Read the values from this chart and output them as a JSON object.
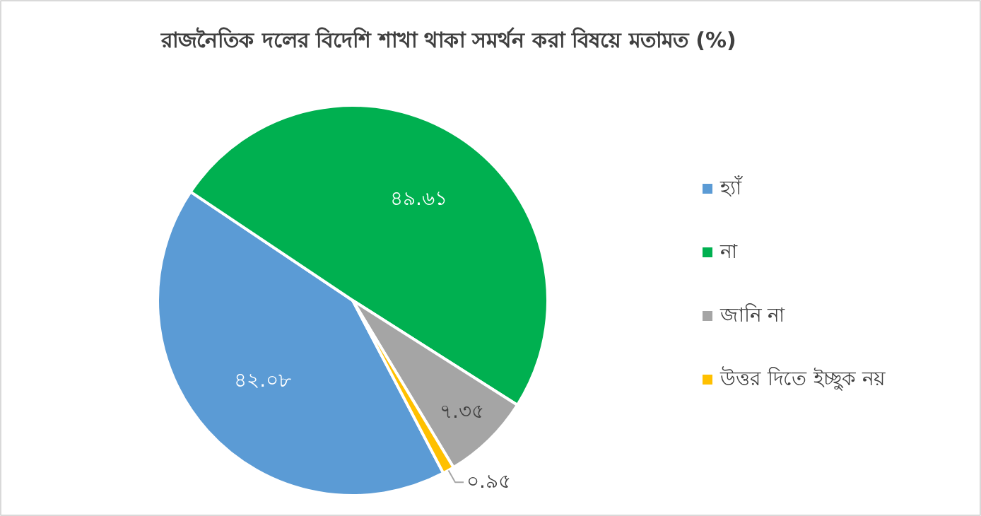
{
  "chart_data": {
    "type": "pie",
    "title": "রাজনৈতিক দলের বিদেশি শাখা থাকা সমর্থন করা বিষয়ে মতামত (%)",
    "categories": [
      "হ্যাঁ",
      "না",
      "জানি না",
      "উত্তর দিতে ইচ্ছুক নয়"
    ],
    "values": [
      42.08,
      49.61,
      7.35,
      0.95
    ],
    "colors": [
      "#5b9bd5",
      "#00b050",
      "#a5a5a5",
      "#ffc000"
    ],
    "value_labels": [
      "৪২.০৮",
      "৪৯.৬১",
      "৭.৩৫",
      "০.৯৫"
    ],
    "legend": "right"
  }
}
